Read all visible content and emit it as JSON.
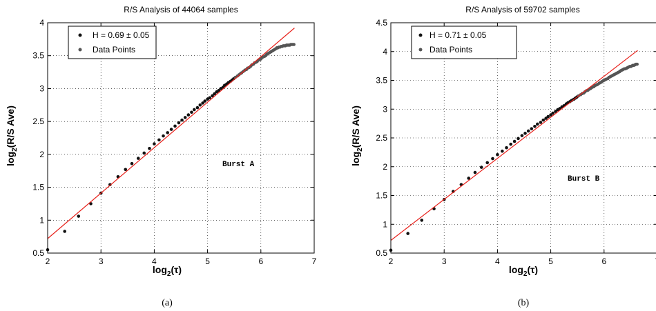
{
  "chart_data": [
    {
      "type": "scatter",
      "title": "R/S Analysis of 44064 samples",
      "xlabel_main": "log",
      "xlabel_sub": "2",
      "xlabel_tail": "(τ)",
      "ylabel_main": "log",
      "ylabel_sub": "2",
      "ylabel_tail": "(R/S Ave)",
      "xlim": [
        2,
        7
      ],
      "ylim": [
        0.5,
        4
      ],
      "xticks": [
        "2",
        "3",
        "4",
        "5",
        "6",
        "7"
      ],
      "yticks": [
        "0.5",
        "1",
        "1.5",
        "2",
        "2.5",
        "3",
        "3.5",
        "4"
      ],
      "grid": true,
      "legend_position": "top-left",
      "annotation": "Burst A",
      "caption": "(a)",
      "fit_line": {
        "label": "H = 0.69 ± 0.05",
        "color": "#e8211b",
        "x": [
          2.0,
          6.63
        ],
        "y": [
          0.72,
          3.92
        ]
      },
      "series": [
        {
          "name": "Data Points",
          "color": "#555555",
          "points": [
            [
              2.0,
              0.55
            ],
            [
              2.32,
              0.83
            ],
            [
              2.58,
              1.06
            ],
            [
              2.81,
              1.25
            ],
            [
              3.0,
              1.41
            ],
            [
              3.17,
              1.54
            ],
            [
              3.32,
              1.66
            ],
            [
              3.46,
              1.77
            ],
            [
              3.58,
              1.86
            ],
            [
              3.7,
              1.94
            ],
            [
              3.81,
              2.02
            ],
            [
              3.91,
              2.09
            ],
            [
              4.0,
              2.16
            ],
            [
              4.09,
              2.22
            ],
            [
              4.17,
              2.28
            ],
            [
              4.25,
              2.33
            ],
            [
              4.32,
              2.38
            ],
            [
              4.39,
              2.43
            ],
            [
              4.46,
              2.48
            ],
            [
              4.52,
              2.52
            ],
            [
              4.58,
              2.56
            ],
            [
              4.64,
              2.6
            ],
            [
              4.7,
              2.64
            ],
            [
              4.75,
              2.68
            ],
            [
              4.81,
              2.71
            ],
            [
              4.86,
              2.75
            ],
            [
              4.91,
              2.78
            ],
            [
              4.95,
              2.81
            ],
            [
              5.0,
              2.84
            ],
            [
              5.04,
              2.86
            ],
            [
              5.09,
              2.89
            ],
            [
              5.13,
              2.92
            ],
            [
              5.17,
              2.95
            ],
            [
              5.21,
              2.97
            ],
            [
              5.25,
              3.0
            ],
            [
              5.29,
              3.02
            ],
            [
              5.32,
              3.05
            ],
            [
              5.36,
              3.07
            ],
            [
              5.39,
              3.09
            ],
            [
              5.43,
              3.11
            ],
            [
              5.46,
              3.13
            ],
            [
              5.49,
              3.15
            ],
            [
              5.52,
              3.17
            ],
            [
              5.56,
              3.19
            ],
            [
              5.59,
              3.21
            ],
            [
              5.62,
              3.23
            ],
            [
              5.64,
              3.24
            ],
            [
              5.67,
              3.26
            ],
            [
              5.7,
              3.28
            ],
            [
              5.73,
              3.29
            ],
            [
              5.75,
              3.31
            ],
            [
              5.78,
              3.32
            ],
            [
              5.81,
              3.34
            ],
            [
              5.83,
              3.36
            ],
            [
              5.86,
              3.37
            ],
            [
              5.88,
              3.39
            ],
            [
              5.91,
              3.4
            ],
            [
              5.93,
              3.41
            ],
            [
              5.95,
              3.43
            ],
            [
              5.98,
              3.44
            ],
            [
              6.0,
              3.45
            ],
            [
              6.02,
              3.47
            ],
            [
              6.04,
              3.48
            ],
            [
              6.07,
              3.49
            ],
            [
              6.09,
              3.5
            ],
            [
              6.11,
              3.52
            ],
            [
              6.13,
              3.53
            ],
            [
              6.15,
              3.54
            ],
            [
              6.17,
              3.55
            ],
            [
              6.19,
              3.56
            ],
            [
              6.21,
              3.57
            ],
            [
              6.23,
              3.58
            ],
            [
              6.25,
              3.59
            ],
            [
              6.27,
              3.6
            ],
            [
              6.29,
              3.61
            ],
            [
              6.3,
              3.62
            ],
            [
              6.32,
              3.62
            ],
            [
              6.34,
              3.63
            ],
            [
              6.36,
              3.63
            ],
            [
              6.38,
              3.64
            ],
            [
              6.4,
              3.64
            ],
            [
              6.42,
              3.65
            ],
            [
              6.44,
              3.65
            ],
            [
              6.46,
              3.65
            ],
            [
              6.48,
              3.66
            ],
            [
              6.5,
              3.66
            ],
            [
              6.52,
              3.66
            ],
            [
              6.54,
              3.66
            ],
            [
              6.56,
              3.67
            ],
            [
              6.58,
              3.67
            ],
            [
              6.6,
              3.67
            ],
            [
              6.62,
              3.67
            ]
          ]
        }
      ]
    },
    {
      "type": "scatter",
      "title": "R/S Analysis of 59702 samples",
      "xlabel_main": "log",
      "xlabel_sub": "2",
      "xlabel_tail": "(τ)",
      "ylabel_main": "log",
      "ylabel_sub": "2",
      "ylabel_tail": "(R/S Ave)",
      "xlim": [
        2,
        7
      ],
      "ylim": [
        0.5,
        4.5
      ],
      "xticks": [
        "2",
        "3",
        "4",
        "5",
        "6",
        "7"
      ],
      "yticks": [
        "0.5",
        "1",
        "1.5",
        "2",
        "2.5",
        "3",
        "3.5",
        "4",
        "4.5"
      ],
      "grid": true,
      "legend_position": "top-left",
      "annotation": "Burst B",
      "caption": "(b)",
      "fit_line": {
        "label": "H = 0.71 ± 0.05",
        "color": "#e8211b",
        "x": [
          2.0,
          6.63
        ],
        "y": [
          0.72,
          4.02
        ]
      },
      "series": [
        {
          "name": "Data Points",
          "color": "#555555",
          "points": [
            [
              2.0,
              0.55
            ],
            [
              2.32,
              0.84
            ],
            [
              2.58,
              1.07
            ],
            [
              2.81,
              1.27
            ],
            [
              3.0,
              1.43
            ],
            [
              3.17,
              1.57
            ],
            [
              3.32,
              1.69
            ],
            [
              3.46,
              1.8
            ],
            [
              3.58,
              1.9
            ],
            [
              3.7,
              1.99
            ],
            [
              3.81,
              2.07
            ],
            [
              3.91,
              2.14
            ],
            [
              4.0,
              2.21
            ],
            [
              4.09,
              2.27
            ],
            [
              4.17,
              2.33
            ],
            [
              4.25,
              2.39
            ],
            [
              4.32,
              2.44
            ],
            [
              4.39,
              2.49
            ],
            [
              4.46,
              2.54
            ],
            [
              4.52,
              2.58
            ],
            [
              4.58,
              2.62
            ],
            [
              4.64,
              2.66
            ],
            [
              4.7,
              2.7
            ],
            [
              4.75,
              2.74
            ],
            [
              4.81,
              2.77
            ],
            [
              4.86,
              2.81
            ],
            [
              4.91,
              2.84
            ],
            [
              4.95,
              2.87
            ],
            [
              5.0,
              2.9
            ],
            [
              5.04,
              2.93
            ],
            [
              5.09,
              2.96
            ],
            [
              5.13,
              2.99
            ],
            [
              5.17,
              3.01
            ],
            [
              5.21,
              3.04
            ],
            [
              5.25,
              3.06
            ],
            [
              5.29,
              3.09
            ],
            [
              5.32,
              3.11
            ],
            [
              5.36,
              3.13
            ],
            [
              5.39,
              3.15
            ],
            [
              5.43,
              3.17
            ],
            [
              5.46,
              3.19
            ],
            [
              5.49,
              3.21
            ],
            [
              5.52,
              3.23
            ],
            [
              5.56,
              3.25
            ],
            [
              5.59,
              3.27
            ],
            [
              5.62,
              3.28
            ],
            [
              5.64,
              3.3
            ],
            [
              5.67,
              3.32
            ],
            [
              5.7,
              3.33
            ],
            [
              5.73,
              3.35
            ],
            [
              5.75,
              3.36
            ],
            [
              5.78,
              3.38
            ],
            [
              5.81,
              3.39
            ],
            [
              5.83,
              3.41
            ],
            [
              5.86,
              3.42
            ],
            [
              5.88,
              3.43
            ],
            [
              5.91,
              3.45
            ],
            [
              5.93,
              3.46
            ],
            [
              5.95,
              3.47
            ],
            [
              5.98,
              3.49
            ],
            [
              6.0,
              3.5
            ],
            [
              6.02,
              3.51
            ],
            [
              6.04,
              3.52
            ],
            [
              6.07,
              3.53
            ],
            [
              6.09,
              3.55
            ],
            [
              6.11,
              3.56
            ],
            [
              6.13,
              3.57
            ],
            [
              6.15,
              3.58
            ],
            [
              6.17,
              3.59
            ],
            [
              6.19,
              3.6
            ],
            [
              6.21,
              3.61
            ],
            [
              6.23,
              3.62
            ],
            [
              6.25,
              3.63
            ],
            [
              6.27,
              3.64
            ],
            [
              6.29,
              3.65
            ],
            [
              6.3,
              3.66
            ],
            [
              6.32,
              3.67
            ],
            [
              6.34,
              3.68
            ],
            [
              6.36,
              3.69
            ],
            [
              6.38,
              3.7
            ],
            [
              6.4,
              3.7
            ],
            [
              6.42,
              3.71
            ],
            [
              6.44,
              3.72
            ],
            [
              6.46,
              3.73
            ],
            [
              6.48,
              3.74
            ],
            [
              6.5,
              3.74
            ],
            [
              6.52,
              3.75
            ],
            [
              6.54,
              3.76
            ],
            [
              6.56,
              3.76
            ],
            [
              6.58,
              3.77
            ],
            [
              6.6,
              3.78
            ],
            [
              6.62,
              3.78
            ]
          ]
        }
      ]
    }
  ]
}
